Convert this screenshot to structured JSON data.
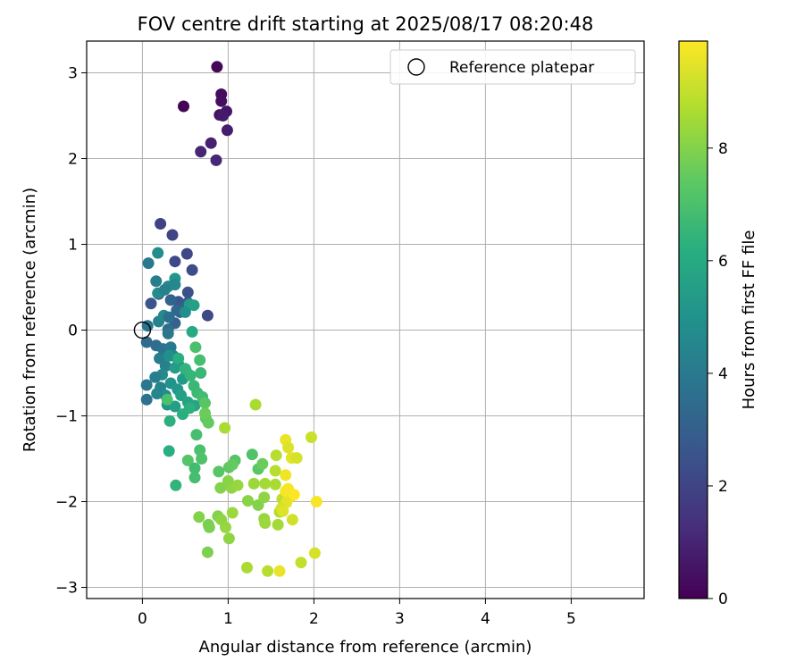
{
  "chart_data": {
    "type": "scatter",
    "title": "FOV centre drift starting at 2025/08/17 08:20:48",
    "xlabel": "Angular distance from reference (arcmin)",
    "ylabel": "Rotation from reference (arcmin)",
    "xlim": [
      -0.65,
      5.85
    ],
    "ylim": [
      -3.13,
      3.37
    ],
    "xticks": [
      0,
      1,
      2,
      3,
      4,
      5
    ],
    "yticks": [
      -3,
      -2,
      -1,
      0,
      1,
      2,
      3
    ],
    "grid": true,
    "legend": {
      "placement": "top-right",
      "entries": [
        "Reference platepar"
      ]
    },
    "reference_point": {
      "x": 0,
      "y": 0,
      "marker": "open-circle",
      "color": "#000000"
    },
    "colorbar": {
      "label": "Hours from first FF file",
      "range": [
        0,
        9.9
      ],
      "ticks": [
        0,
        2,
        4,
        6,
        8
      ],
      "colormap": "viridis"
    },
    "series": [
      {
        "marker": "filled-circle",
        "points": [
          [
            0.48,
            2.61,
            0.1
          ],
          [
            0.87,
            3.07,
            0.2
          ],
          [
            0.92,
            2.75,
            0.3
          ],
          [
            0.92,
            2.67,
            0.4
          ],
          [
            0.9,
            2.51,
            0.5
          ],
          [
            0.98,
            2.55,
            0.6
          ],
          [
            0.94,
            2.5,
            0.7
          ],
          [
            0.99,
            2.33,
            0.8
          ],
          [
            0.8,
            2.18,
            0.9
          ],
          [
            0.68,
            2.08,
            1.0
          ],
          [
            0.86,
            1.98,
            1.1
          ],
          [
            0.21,
            1.24,
            1.9
          ],
          [
            0.35,
            1.11,
            2.0
          ],
          [
            0.52,
            0.89,
            2.1
          ],
          [
            0.38,
            0.8,
            2.2
          ],
          [
            0.58,
            0.7,
            2.3
          ],
          [
            0.53,
            0.44,
            2.4
          ],
          [
            0.19,
            0.42,
            2.5
          ],
          [
            0.1,
            0.31,
            2.6
          ],
          [
            0.42,
            0.33,
            2.7
          ],
          [
            0.53,
            0.32,
            2.8
          ],
          [
            0.47,
            0.26,
            2.9
          ],
          [
            0.44,
            0.21,
            3.0
          ],
          [
            0.38,
            0.08,
            3.1
          ],
          [
            0.76,
            0.17,
            2.2
          ],
          [
            0.33,
            0.35,
            3.2
          ],
          [
            0.4,
            0.23,
            3.3
          ],
          [
            0.07,
            0.78,
            4.0
          ],
          [
            0.18,
            0.9,
            4.8
          ],
          [
            0.16,
            0.57,
            4.2
          ],
          [
            0.3,
            0.51,
            4.5
          ],
          [
            0.38,
            0.6,
            5.2
          ],
          [
            0.38,
            0.53,
            4.6
          ],
          [
            0.18,
            0.43,
            4.8
          ],
          [
            0.26,
            0.47,
            4.3
          ],
          [
            0.55,
            0.3,
            5.4
          ],
          [
            0.6,
            0.29,
            5.6
          ],
          [
            0.5,
            0.21,
            4.9
          ],
          [
            0.06,
            0.05,
            3.8
          ],
          [
            0.19,
            0.1,
            4.4
          ],
          [
            0.25,
            0.17,
            4.7
          ],
          [
            0.3,
            0.01,
            3.5
          ],
          [
            0.31,
            0.15,
            3.6
          ],
          [
            0.05,
            -0.14,
            3.4
          ],
          [
            0.16,
            -0.18,
            3.5
          ],
          [
            0.24,
            -0.22,
            3.7
          ],
          [
            0.3,
            -0.04,
            3.9
          ],
          [
            0.33,
            -0.2,
            4.0
          ],
          [
            0.2,
            -0.33,
            4.1
          ],
          [
            0.27,
            -0.42,
            4.3
          ],
          [
            0.36,
            -0.3,
            4.4
          ],
          [
            0.42,
            -0.4,
            4.6
          ],
          [
            0.23,
            -0.52,
            4.7
          ],
          [
            0.15,
            -0.55,
            4.2
          ],
          [
            0.05,
            -0.64,
            3.9
          ],
          [
            0.05,
            -0.81,
            3.7
          ],
          [
            0.21,
            -0.67,
            4.4
          ],
          [
            0.27,
            -0.76,
            4.8
          ],
          [
            0.33,
            -0.62,
            5.0
          ],
          [
            0.41,
            -0.69,
            5.2
          ],
          [
            0.47,
            -0.57,
            5.3
          ],
          [
            0.51,
            -0.48,
            5.5
          ],
          [
            0.29,
            -0.87,
            5.1
          ],
          [
            0.31,
            -0.3,
            4.9
          ],
          [
            0.58,
            -0.02,
            6.0
          ],
          [
            0.38,
            -0.44,
            5.4
          ],
          [
            0.45,
            -0.76,
            5.6
          ],
          [
            0.53,
            -0.84,
            5.7
          ],
          [
            0.61,
            -0.88,
            5.8
          ],
          [
            0.38,
            -0.89,
            5.5
          ],
          [
            0.17,
            -0.74,
            4.5
          ],
          [
            0.42,
            -0.33,
            6.2
          ],
          [
            0.5,
            -0.45,
            6.4
          ],
          [
            0.56,
            -0.53,
            6.5
          ],
          [
            0.6,
            -0.65,
            6.6
          ],
          [
            0.64,
            -0.73,
            6.7
          ],
          [
            0.7,
            -0.78,
            6.8
          ],
          [
            0.68,
            -0.5,
            6.6
          ],
          [
            0.67,
            -0.35,
            6.9
          ],
          [
            0.62,
            -0.2,
            7.0
          ],
          [
            0.47,
            -0.98,
            6.2
          ],
          [
            0.55,
            -0.91,
            6.3
          ],
          [
            0.32,
            -1.06,
            6.3
          ],
          [
            0.63,
            -1.22,
            6.9
          ],
          [
            0.67,
            -1.4,
            7.0
          ],
          [
            0.69,
            -1.5,
            7.1
          ],
          [
            0.53,
            -1.52,
            7.2
          ],
          [
            0.61,
            -1.61,
            6.8
          ],
          [
            0.61,
            -1.72,
            6.9
          ],
          [
            0.39,
            -1.81,
            6.4
          ],
          [
            0.31,
            -1.41,
            6.2
          ],
          [
            0.29,
            -0.81,
            7.0
          ],
          [
            0.73,
            -0.85,
            7.3
          ],
          [
            0.74,
            -1.03,
            7.4
          ],
          [
            0.77,
            -1.08,
            7.5
          ],
          [
            0.73,
            -0.97,
            7.6
          ],
          [
            0.89,
            -1.65,
            7.3
          ],
          [
            1.01,
            -1.6,
            7.4
          ],
          [
            1.08,
            -1.52,
            7.2
          ],
          [
            1.05,
            -1.57,
            7.5
          ],
          [
            1.28,
            -1.45,
            7.1
          ],
          [
            1.35,
            -1.62,
            7.3
          ],
          [
            1.4,
            -1.56,
            7.6
          ],
          [
            0.91,
            -1.84,
            8.0
          ],
          [
            1.0,
            -1.76,
            8.1
          ],
          [
            1.04,
            -1.84,
            8.2
          ],
          [
            1.11,
            -1.81,
            8.3
          ],
          [
            1.23,
            -1.99,
            8.1
          ],
          [
            1.3,
            -1.79,
            8.4
          ],
          [
            1.35,
            -2.04,
            8.0
          ],
          [
            1.42,
            -1.95,
            8.2
          ],
          [
            1.43,
            -1.79,
            8.5
          ],
          [
            0.96,
            -1.14,
            8.6
          ],
          [
            1.32,
            -0.87,
            8.6
          ],
          [
            0.66,
            -2.18,
            8.0
          ],
          [
            0.78,
            -2.3,
            7.8
          ],
          [
            0.77,
            -2.27,
            7.9
          ],
          [
            0.88,
            -2.17,
            8.0
          ],
          [
            0.92,
            -2.21,
            8.2
          ],
          [
            0.97,
            -2.3,
            8.3
          ],
          [
            1.05,
            -2.13,
            8.4
          ],
          [
            1.01,
            -2.43,
            8.2
          ],
          [
            0.76,
            -2.59,
            7.9
          ],
          [
            1.22,
            -2.77,
            8.6
          ],
          [
            1.46,
            -2.81,
            8.8
          ],
          [
            1.42,
            -2.2,
            8.3
          ],
          [
            1.43,
            -2.25,
            8.4
          ],
          [
            1.58,
            -2.27,
            8.5
          ],
          [
            1.6,
            -2.12,
            8.7
          ],
          [
            1.55,
            -1.8,
            8.6
          ],
          [
            1.55,
            -1.64,
            8.8
          ],
          [
            1.56,
            -1.46,
            8.8
          ],
          [
            1.63,
            -1.97,
            8.9
          ],
          [
            1.67,
            -1.28,
            9.6
          ],
          [
            1.7,
            -1.37,
            9.4
          ],
          [
            1.74,
            -1.49,
            9.5
          ],
          [
            1.8,
            -1.49,
            9.3
          ],
          [
            1.67,
            -1.69,
            9.7
          ],
          [
            1.7,
            -1.85,
            9.8
          ],
          [
            1.73,
            -1.94,
            9.6
          ],
          [
            1.77,
            -1.92,
            9.9
          ],
          [
            1.68,
            -2.01,
            9.5
          ],
          [
            1.62,
            -2.08,
            9.3
          ],
          [
            1.64,
            -2.11,
            9.4
          ],
          [
            1.67,
            -1.88,
            9.8
          ],
          [
            1.75,
            -2.21,
            9.2
          ],
          [
            1.6,
            -2.81,
            9.6
          ],
          [
            1.85,
            -2.71,
            9.0
          ],
          [
            2.01,
            -2.6,
            9.3
          ],
          [
            2.03,
            -2.0,
            9.8
          ],
          [
            1.97,
            -1.25,
            9.1
          ]
        ]
      }
    ]
  }
}
